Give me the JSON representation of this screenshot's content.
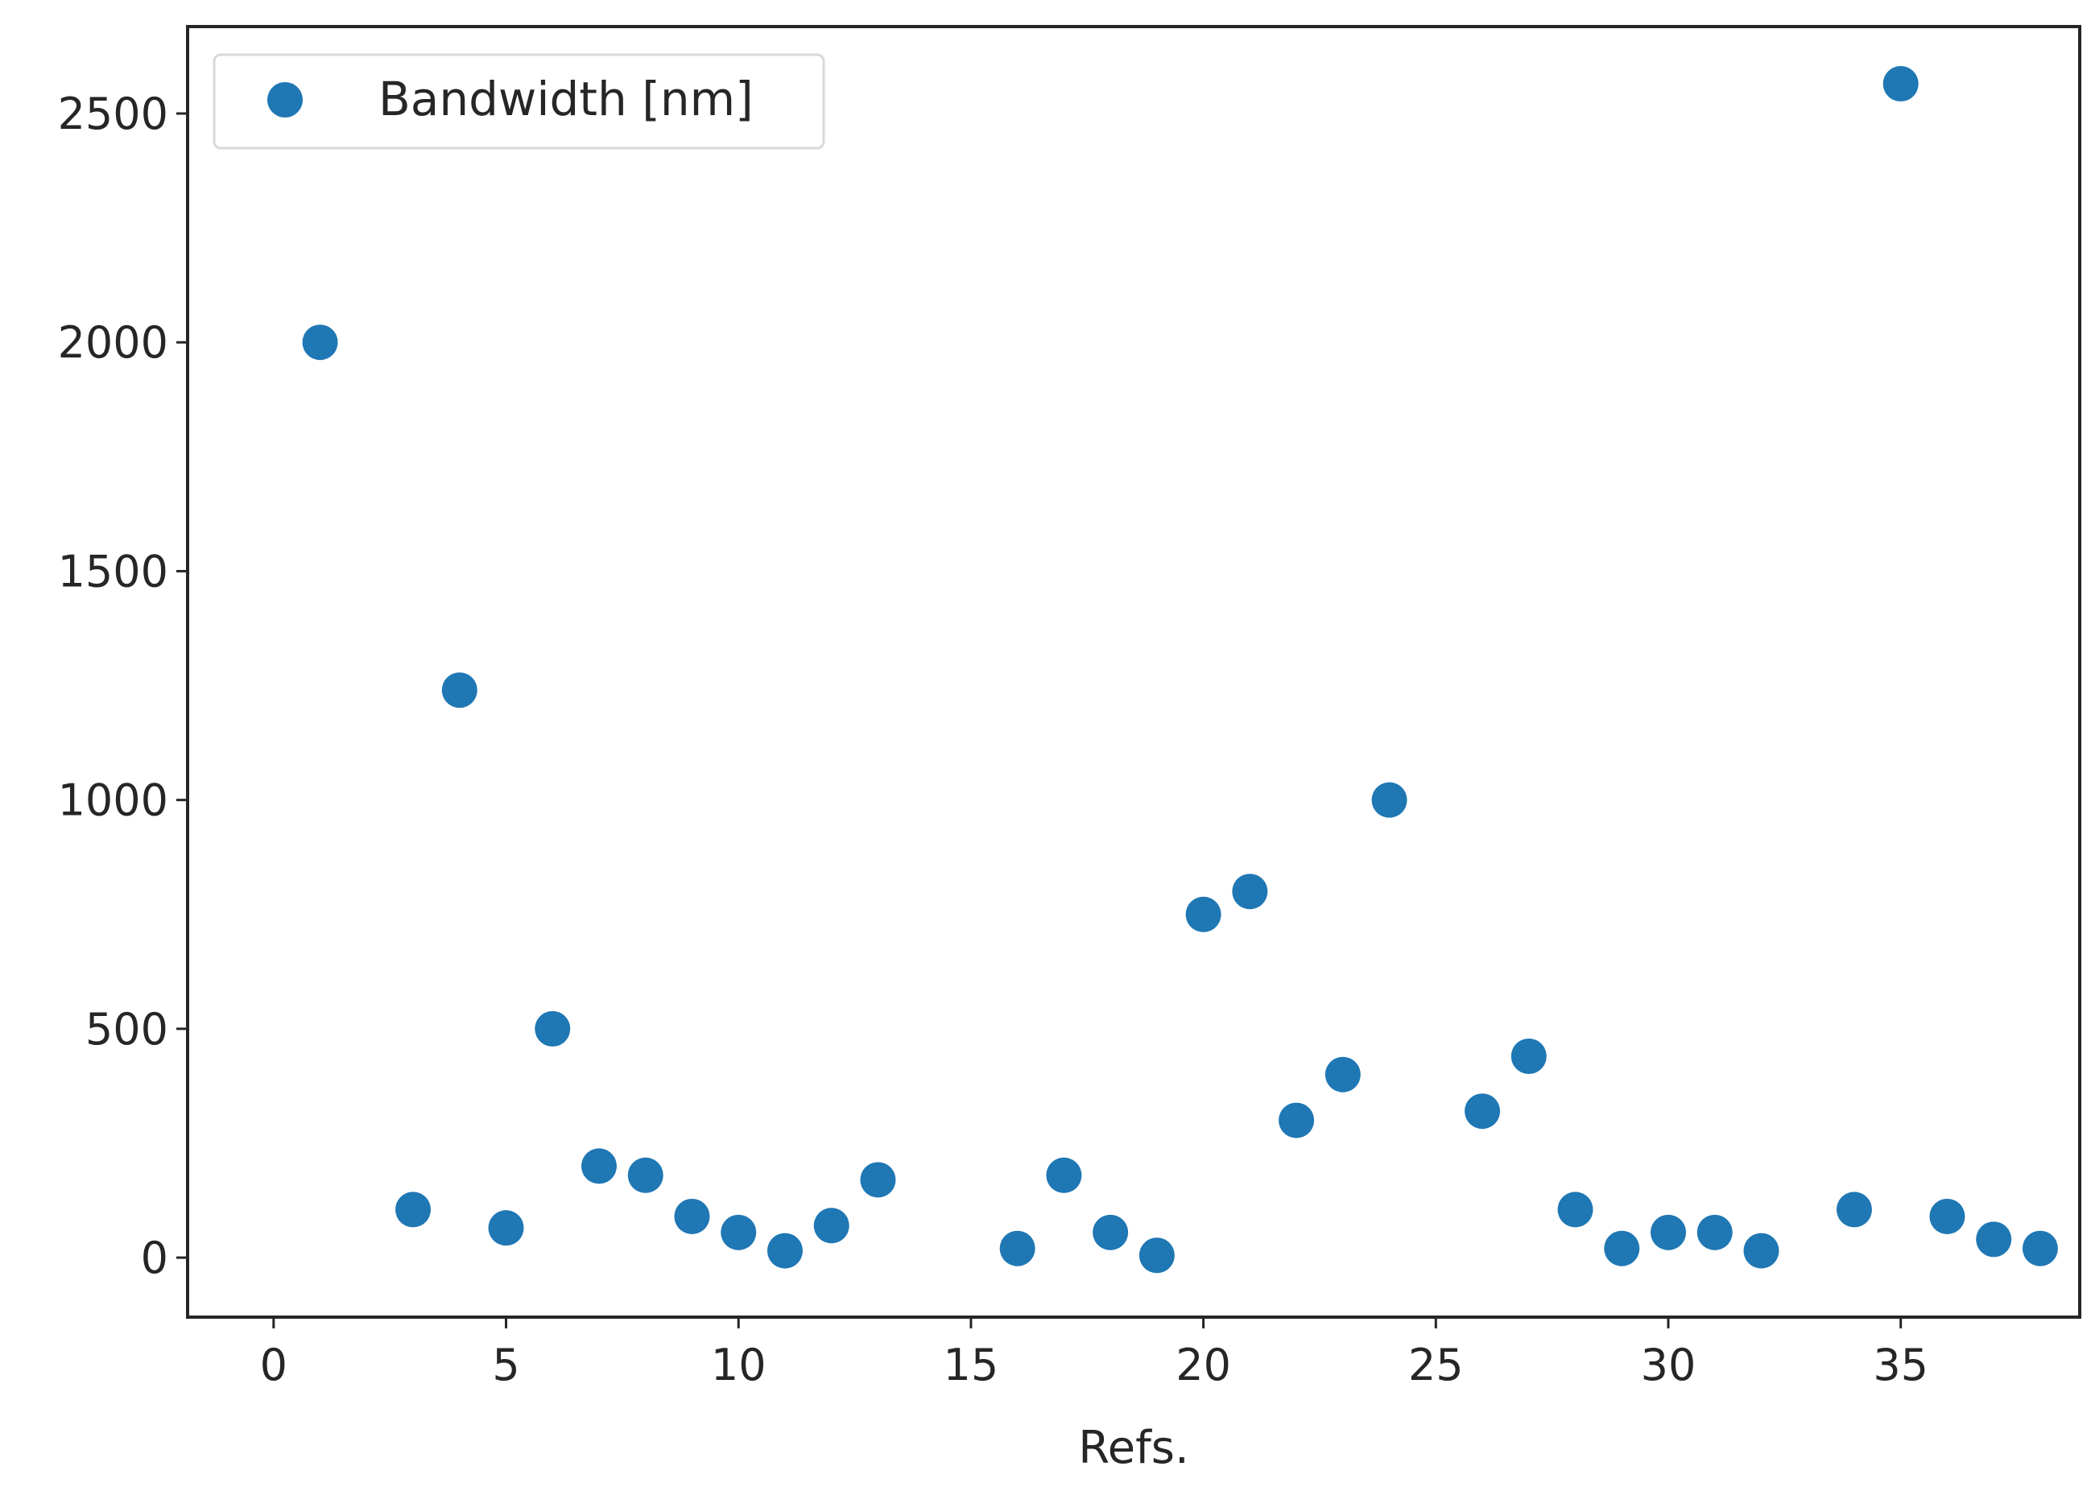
{
  "chart_data": {
    "type": "scatter",
    "title": "",
    "xlabel": "Refs.",
    "ylabel": "",
    "xlim": [
      -1.85,
      38.85
    ],
    "ylim": [
      -130,
      2690
    ],
    "xticks": [
      0,
      5,
      10,
      15,
      20,
      25,
      30,
      35
    ],
    "yticks": [
      0,
      500,
      1000,
      1500,
      2000,
      2500
    ],
    "grid": false,
    "legend": {
      "position": "top-left",
      "entries": [
        "Bandwidth [nm]"
      ]
    },
    "colors": {
      "marker": "#1f77b4",
      "axes": "#262626",
      "legend_border": "#d9d9d9"
    },
    "series": [
      {
        "name": "Bandwidth [nm]",
        "x": [
          1,
          3,
          4,
          5,
          6,
          7,
          8,
          9,
          10,
          11,
          12,
          13,
          16,
          17,
          18,
          19,
          20,
          21,
          22,
          23,
          24,
          26,
          27,
          28,
          29,
          30,
          31,
          32,
          34,
          35,
          36,
          37,
          38
        ],
        "y": [
          2000,
          105,
          1240,
          65,
          500,
          200,
          180,
          90,
          55,
          15,
          70,
          170,
          20,
          180,
          55,
          5,
          750,
          800,
          300,
          400,
          1000,
          320,
          440,
          105,
          20,
          55,
          55,
          15,
          105,
          2565,
          90,
          40,
          20
        ]
      }
    ]
  }
}
